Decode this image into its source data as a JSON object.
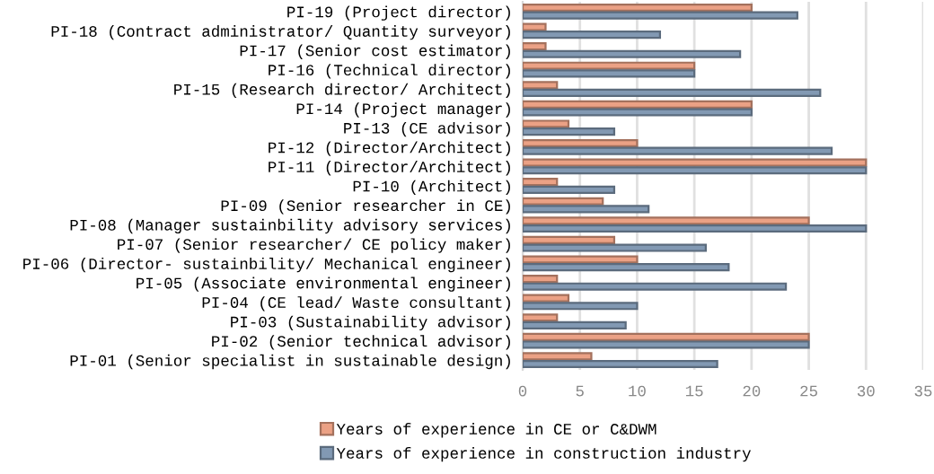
{
  "chart_data": {
    "type": "bar",
    "orientation": "horizontal",
    "categories": [
      "PI-19 (Project director)",
      "PI-18 (Contract administrator/ Quantity surveyor)",
      "PI-17 (Senior cost estimator)",
      "PI-16 (Technical director)",
      "PI-15 (Research director/ Architect)",
      "PI-14 (Project manager)",
      "PI-13 (CE advisor)",
      "PI-12 (Director/Architect)",
      "PI-11 (Director/Architect)",
      "PI-10 (Architect)",
      "PI-09 (Senior researcher in CE)",
      "PI-08 (Manager sustainbility advisory services)",
      "PI-07 (Senior researcher/ CE policy maker)",
      "PI-06 (Director- sustainbility/ Mechanical engineer)",
      "PI-05 (Associate environmental engineer)",
      "PI-04 (CE lead/ Waste consultant)",
      "PI-03 (Sustainability advisor)",
      "PI-02 (Senior technical advisor)",
      "PI-01 (Senior specialist in sustainable design)"
    ],
    "series": [
      {
        "name": "Years of experience in CE or C&DWM",
        "color": "#eba185",
        "values": [
          20,
          2,
          2,
          15,
          3,
          20,
          4,
          10,
          30,
          3,
          7,
          25,
          8,
          10,
          3,
          4,
          3,
          25,
          6
        ]
      },
      {
        "name": "Years of experience in construction industry",
        "color": "#8299b3",
        "values": [
          24,
          12,
          19,
          15,
          26,
          20,
          8,
          27,
          30,
          8,
          11,
          30,
          16,
          18,
          23,
          10,
          9,
          25,
          17
        ]
      }
    ],
    "xlim": [
      0,
      35
    ],
    "xticks": [
      0,
      5,
      10,
      15,
      20,
      25,
      30,
      35
    ],
    "grid": "x",
    "legend": "bottom"
  }
}
